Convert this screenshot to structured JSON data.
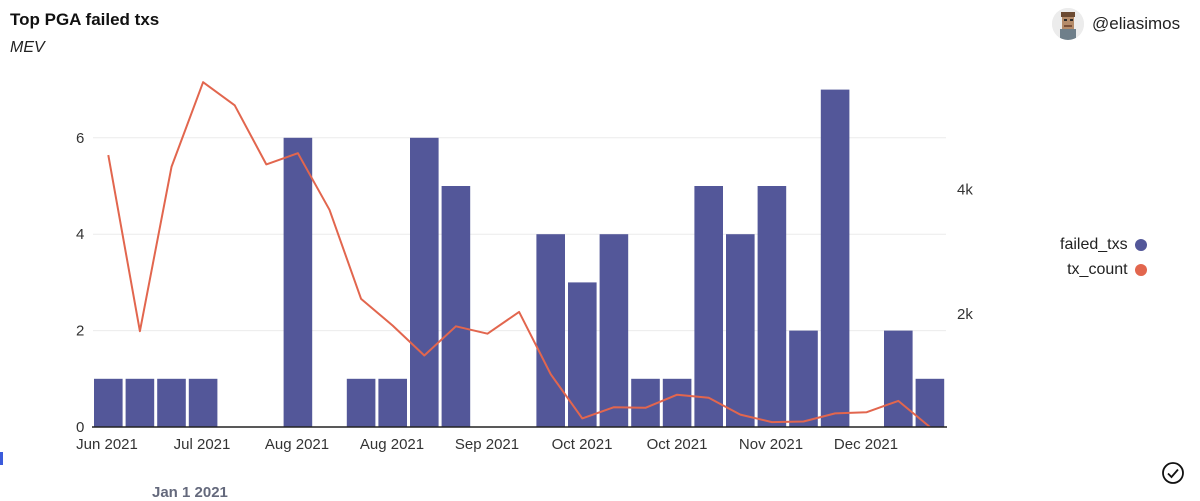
{
  "title": "Top PGA failed txs",
  "subtitle": "MEV",
  "author": {
    "name": "@eliasimos",
    "icon": "user-avatar-icon"
  },
  "footer_fragment": "Jan 1 2021",
  "check_icon": "checkmark-circle-icon",
  "colors": {
    "bar": "#535799",
    "line": "#e2664e",
    "grid": "#ebebeb",
    "axis": "#222222"
  },
  "chart_data": {
    "type": "bar+line",
    "x_tick_labels": [
      "Jun 2021",
      "Jul 2021",
      "Aug 2021",
      "Aug 2021",
      "Sep 2021",
      "Oct 2021",
      "Oct 2021",
      "Nov 2021",
      "Dec 2021"
    ],
    "left_axis": {
      "ylim": [
        0,
        7.4
      ],
      "ticks": [
        0,
        2,
        4,
        6
      ],
      "tick_labels": [
        "0",
        "2",
        "4",
        "6"
      ]
    },
    "right_axis": {
      "ylim": [
        -200,
        5800
      ],
      "ticks": [
        2000,
        4000
      ],
      "tick_labels": [
        "2k",
        "4k"
      ]
    },
    "grid": true,
    "legend_position": "right",
    "series": [
      {
        "name": "failed_txs",
        "kind": "bar",
        "axis": "left",
        "values": [
          1,
          1,
          1,
          1,
          0,
          0,
          6,
          0,
          1,
          1,
          6,
          5,
          0,
          0,
          4,
          3,
          4,
          1,
          1,
          5,
          4,
          5,
          2,
          7,
          0,
          2,
          1
        ]
      },
      {
        "name": "tx_count",
        "kind": "line",
        "axis": "right",
        "values": [
          4550,
          1720,
          4360,
          5720,
          5350,
          4400,
          4580,
          3670,
          2240,
          1810,
          1330,
          1800,
          1680,
          2030,
          1030,
          320,
          500,
          490,
          700,
          650,
          380,
          260,
          270,
          400,
          420,
          600,
          -100
        ]
      }
    ]
  }
}
